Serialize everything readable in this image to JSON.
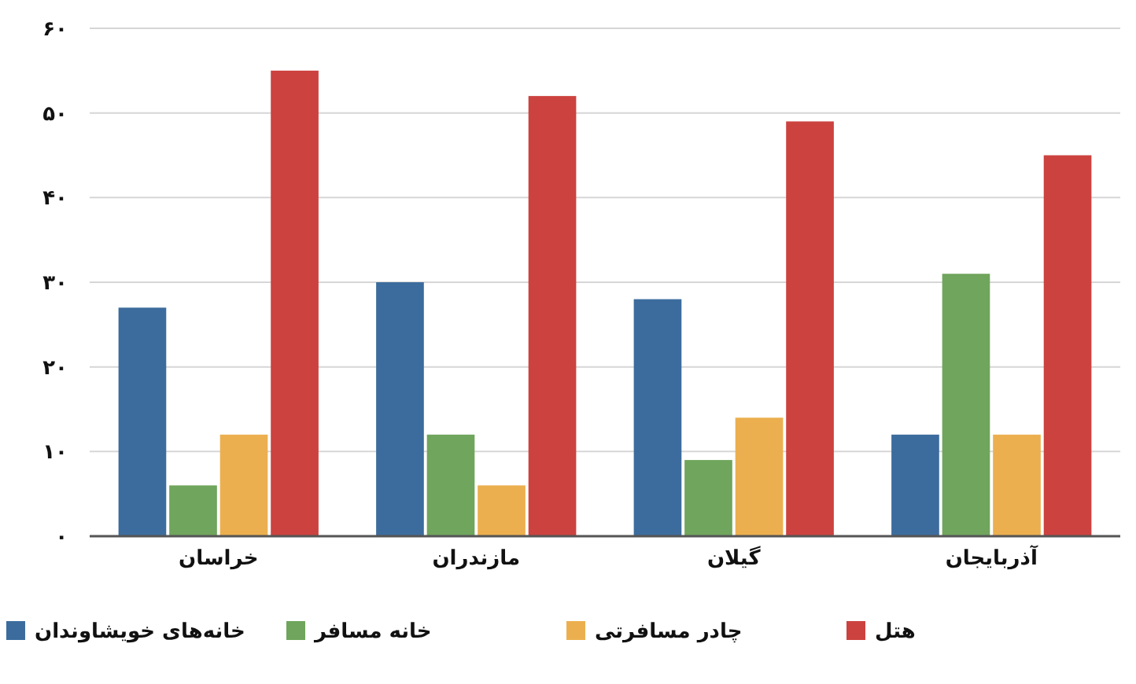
{
  "chart_data": {
    "type": "bar",
    "categories": [
      "خراسان",
      "مازندران",
      "گیلان",
      "آذربایجان"
    ],
    "series": [
      {
        "name": "خانه‌های خویشاوندان",
        "color": "#3c6c9d",
        "values": [
          27,
          30,
          28,
          12
        ]
      },
      {
        "name": "خانه مسافر",
        "color": "#6fa55c",
        "values": [
          6,
          12,
          9,
          31
        ]
      },
      {
        "name": "چادر مسافرتی",
        "color": "#ecaf4f",
        "values": [
          12,
          6,
          14,
          12
        ]
      },
      {
        "name": "هتل",
        "color": "#cc423f",
        "values": [
          55,
          52,
          49,
          45
        ]
      }
    ],
    "ylim": [
      0,
      60
    ],
    "yticks": [
      {
        "value": 0,
        "label": "۰"
      },
      {
        "value": 10,
        "label": "۱۰"
      },
      {
        "value": 20,
        "label": "۲۰"
      },
      {
        "value": 30,
        "label": "۳۰"
      },
      {
        "value": 40,
        "label": "۴۰"
      },
      {
        "value": 50,
        "label": "۵۰"
      },
      {
        "value": 60,
        "label": "۶۰"
      }
    ],
    "grid": "y",
    "legend": "bottom"
  }
}
